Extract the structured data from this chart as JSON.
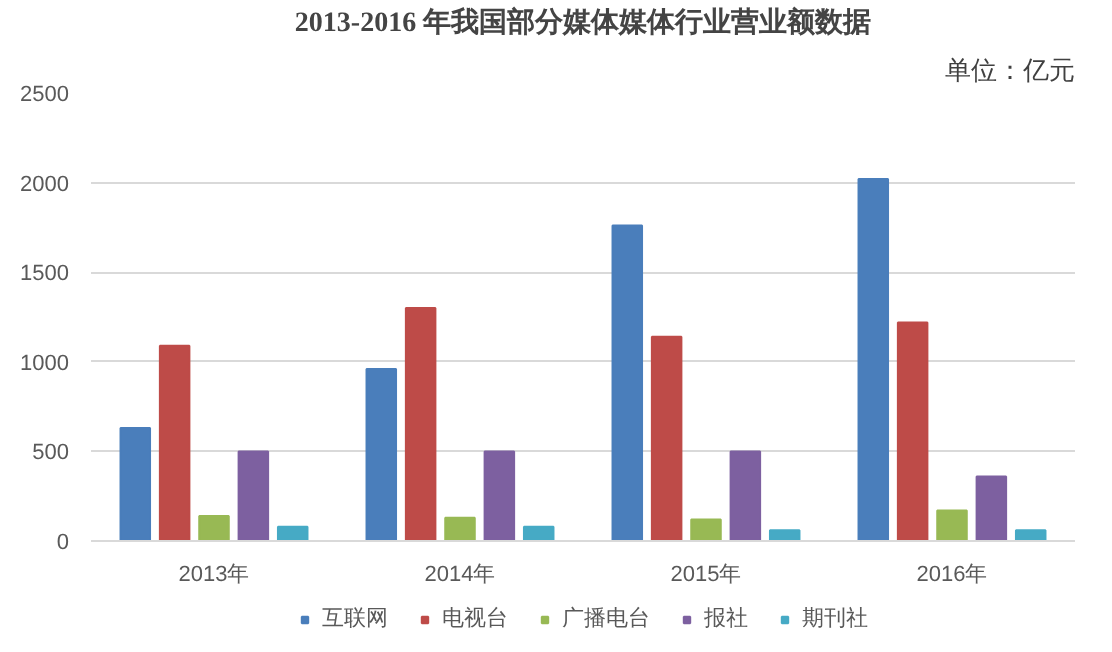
{
  "chart_data": {
    "type": "bar",
    "title": "2013-2016 年我国部分媒体媒体行业营业额数据",
    "annotations": [
      "单位：亿元"
    ],
    "categories": [
      "2013年",
      "2014年",
      "2015年",
      "2016年"
    ],
    "series": [
      {
        "name": "互联网",
        "color": "#4a7ebb",
        "values": [
          630,
          960,
          1760,
          2020
        ]
      },
      {
        "name": "电视台",
        "color": "#be4b48",
        "values": [
          1090,
          1300,
          1140,
          1220
        ]
      },
      {
        "name": "广播电台",
        "color": "#98b954",
        "values": [
          140,
          130,
          120,
          170
        ]
      },
      {
        "name": "报社",
        "color": "#7d60a0",
        "values": [
          500,
          500,
          500,
          360
        ]
      },
      {
        "name": "期刊社",
        "color": "#46aac5",
        "values": [
          80,
          80,
          60,
          60
        ]
      }
    ],
    "ylim": [
      0,
      2500
    ],
    "yticks": [
      0,
      500,
      1000,
      1500,
      2000,
      2500
    ],
    "grid": "y",
    "legend": "bottom"
  }
}
